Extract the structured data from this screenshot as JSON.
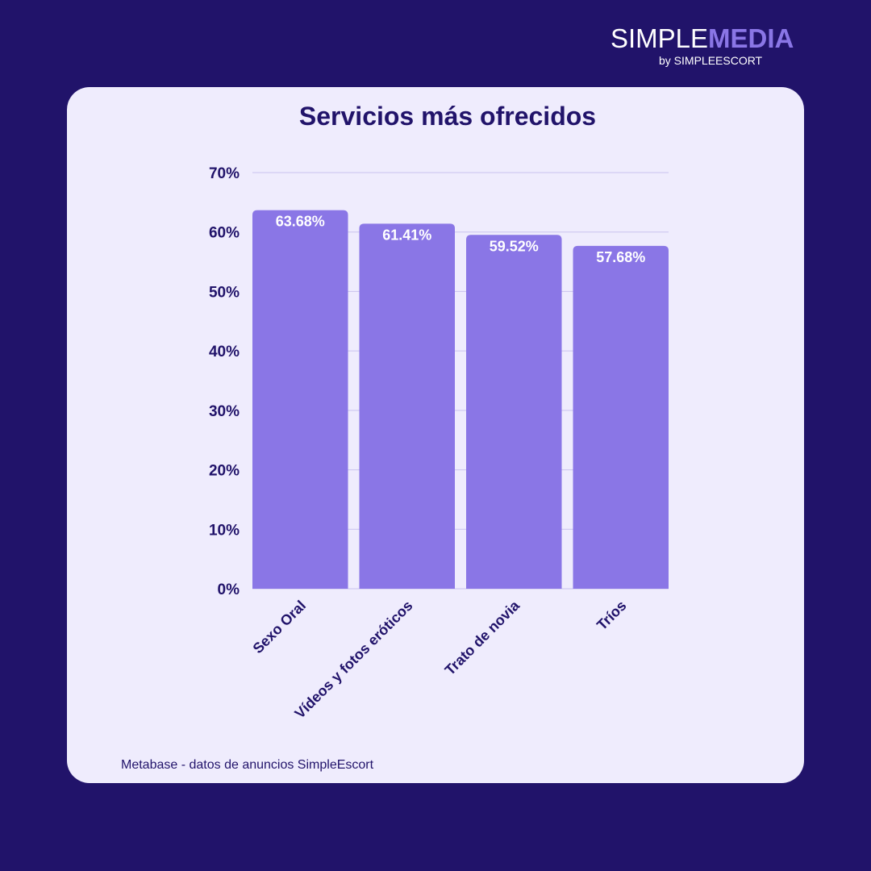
{
  "brand": {
    "name_part1": "SIMPLE",
    "name_part2": "MEDIA",
    "byline": "by SIMPLEESCORT"
  },
  "colors": {
    "background": "#21136a",
    "card": "#efecfd",
    "bar": "#8a76e6",
    "text": "#21136a"
  },
  "source": "Metabase - datos de anuncios SimpleEscort",
  "chart_data": {
    "type": "bar",
    "title": "Servicios más ofrecidos",
    "categories": [
      "Sexo Oral",
      "Vídeos y fotos eróticos",
      "Trato de novia",
      "Tríos"
    ],
    "values": [
      63.68,
      61.41,
      59.52,
      57.68
    ],
    "data_labels": [
      "63.68%",
      "61.41%",
      "59.52%",
      "57.68%"
    ],
    "yticks": [
      0,
      10,
      20,
      30,
      40,
      50,
      60,
      70
    ],
    "ytick_labels": [
      "0%",
      "10%",
      "20%",
      "30%",
      "40%",
      "50%",
      "60%",
      "70%"
    ],
    "ylim": [
      0,
      70
    ],
    "xlabel": "",
    "ylabel": "",
    "grid": true,
    "legend": "none"
  }
}
